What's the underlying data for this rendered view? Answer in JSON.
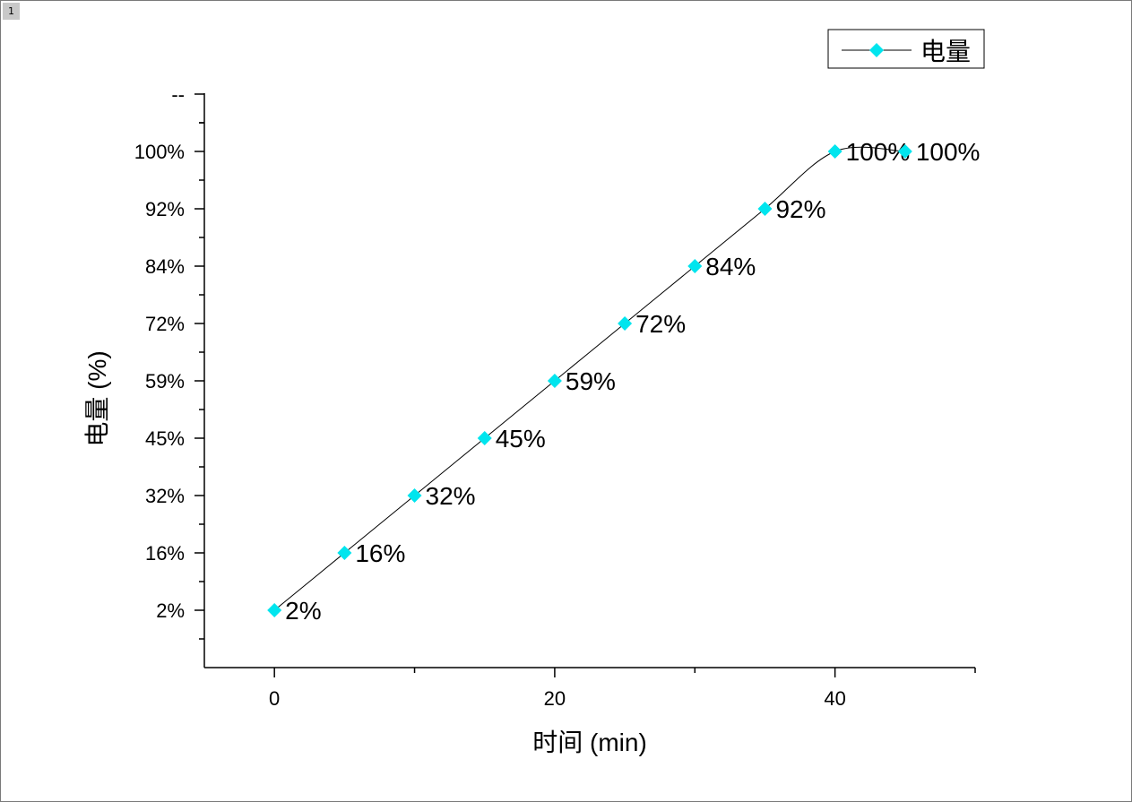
{
  "page": {
    "tag": "1"
  },
  "chart_data": {
    "type": "line",
    "title": "",
    "xlabel": "时间 (min)",
    "ylabel": "电量 (%)",
    "x": [
      0,
      5,
      10,
      15,
      20,
      25,
      30,
      35,
      40,
      45
    ],
    "series": [
      {
        "name": "电量",
        "values": [
          2,
          16,
          32,
          45,
          59,
          72,
          84,
          92,
          100,
          100
        ],
        "point_labels": [
          "2%",
          "16%",
          "32%",
          "45%",
          "59%",
          "72%",
          "84%",
          "92%",
          "100%",
          "100%"
        ],
        "marker": "diamond",
        "marker_color": "#00e5ee",
        "line_color": "#000000",
        "smooth": true
      }
    ],
    "x_ticks": [
      0,
      20,
      40
    ],
    "x_tick_labels": [
      "0",
      "20",
      "40"
    ],
    "y_tick_labels": [
      "2%",
      "16%",
      "32%",
      "45%",
      "59%",
      "72%",
      "84%",
      "92%",
      "100%",
      "--"
    ],
    "y_axis_note": "categorical percent axis: each labeled tick is one category, evenly spaced",
    "xlim": [
      -5,
      50
    ],
    "legend": "top-right",
    "grid": false
  }
}
